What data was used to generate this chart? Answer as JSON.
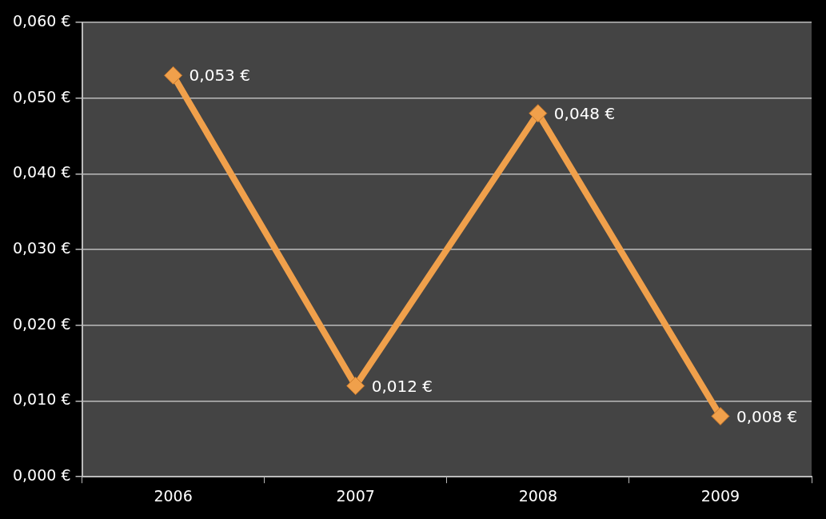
{
  "chart_data": {
    "type": "line",
    "categories": [
      "2006",
      "2007",
      "2008",
      "2009"
    ],
    "series": [
      {
        "color": "#f0a04b",
        "values": [
          0.053,
          0.012,
          0.048,
          0.008
        ],
        "value_labels": [
          "0,053 €",
          "0,012 €",
          "0,048 €",
          "0,008 €"
        ]
      }
    ],
    "ylim": [
      0,
      0.06
    ],
    "yticks": [
      {
        "value": 0,
        "label": "0,000 €"
      },
      {
        "value": 0.01,
        "label": "0,010 €"
      },
      {
        "value": 0.02,
        "label": "0,020 €"
      },
      {
        "value": 0.03,
        "label": "0,030 €"
      },
      {
        "value": 0.04,
        "label": "0,040 €"
      },
      {
        "value": 0.05,
        "label": "0,050 €"
      },
      {
        "value": 0.06,
        "label": "0,060 €"
      }
    ],
    "grid": "y",
    "legend": false,
    "marker": "diamond",
    "line_style": "solid"
  }
}
